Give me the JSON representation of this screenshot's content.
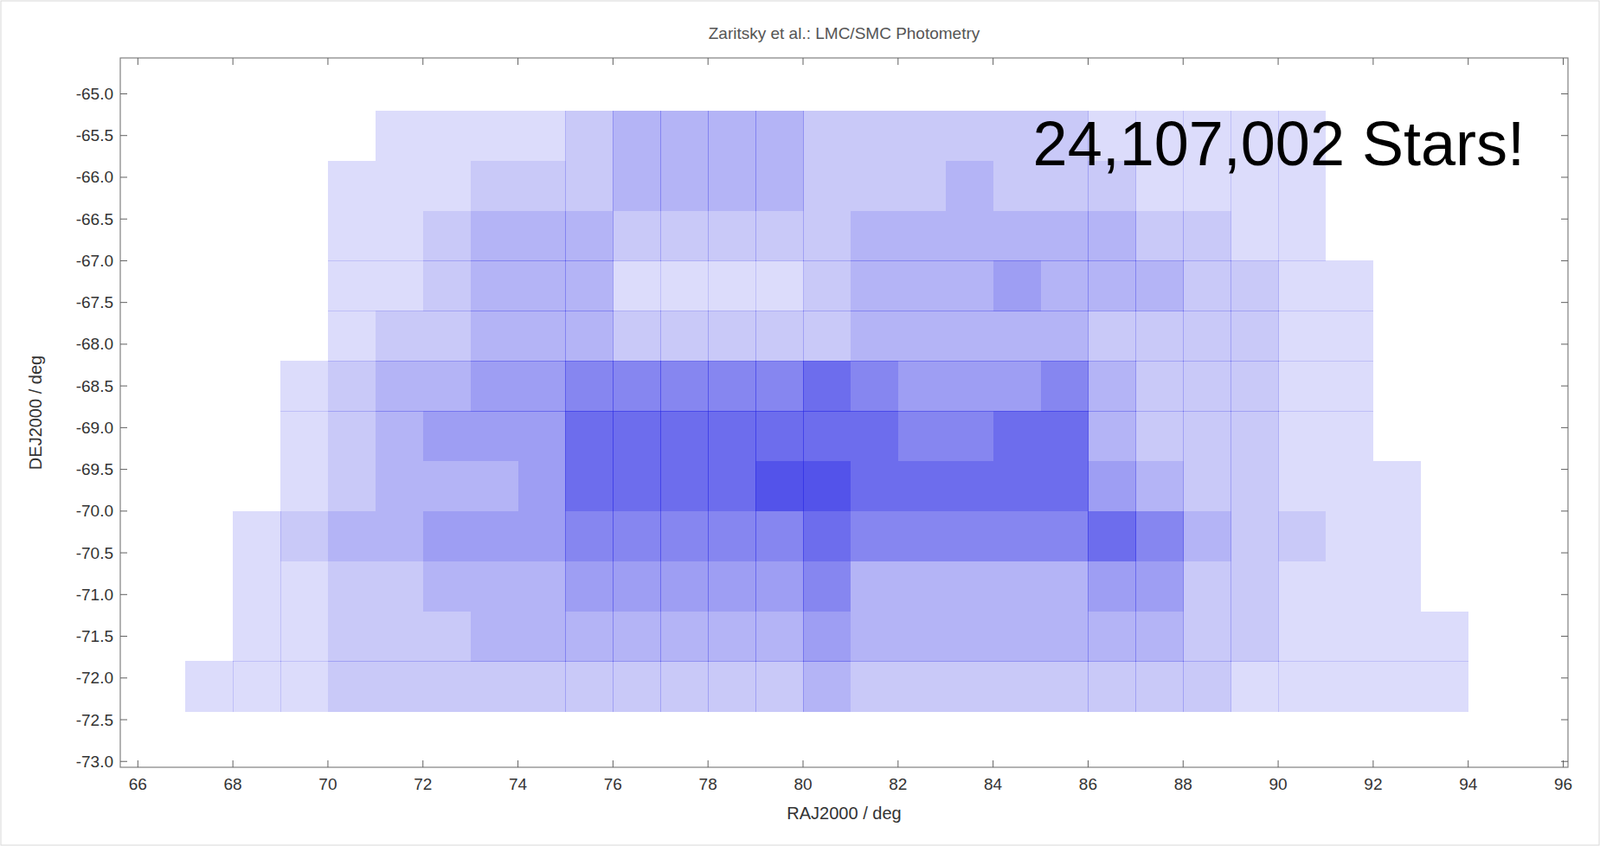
{
  "chart_data": {
    "type": "heatmap",
    "title": "Zaritsky et al.: LMC/SMC Photometry",
    "annotation": "24,107,002 Stars!",
    "x_label": "RAJ2000 / deg",
    "y_label": "DEJ2000 / deg",
    "color": "#3232e6",
    "xlim": [
      65.63,
      96.1
    ],
    "ylim": [
      -73.07,
      -64.57
    ],
    "xticks": [
      66,
      68,
      70,
      72,
      74,
      76,
      78,
      80,
      82,
      84,
      86,
      88,
      90,
      92,
      94,
      96
    ],
    "yticks": [
      {
        "value": -65,
        "label": "-65.0"
      },
      -65.5,
      {
        "value": -66,
        "label": "-66.0"
      },
      -66.5,
      {
        "value": -67,
        "label": "-67.0"
      },
      -67.5,
      {
        "value": -68,
        "label": "-68.0"
      },
      -68.5,
      {
        "value": -69,
        "label": "-69.0"
      },
      -69.5,
      {
        "value": -70,
        "label": "-70.0"
      },
      -70.5,
      {
        "value": -71,
        "label": "-71.0"
      },
      -71.5,
      {
        "value": -72,
        "label": "-72.0"
      },
      -72.5,
      {
        "value": -73,
        "label": "-73.0"
      }
    ],
    "x_edges": [
      67,
      68,
      69,
      70,
      71,
      72,
      73,
      74,
      75,
      76,
      77,
      78,
      79,
      80,
      81,
      82,
      83,
      84,
      85,
      86,
      87,
      88,
      89,
      90,
      91,
      92,
      93,
      94
    ],
    "y_edges": [
      -65.2,
      -65.8,
      -66.4,
      -67.0,
      -67.6,
      -68.2,
      -68.8,
      -69.4,
      -70.0,
      -70.6,
      -71.2,
      -71.8,
      -72.4
    ],
    "cells": [
      [
        null,
        null,
        null,
        null,
        2,
        2,
        2,
        2,
        3,
        4,
        4,
        4,
        4,
        3,
        3,
        3,
        3,
        3,
        3,
        2,
        2,
        2,
        2,
        2,
        null,
        null,
        null
      ],
      [
        null,
        null,
        null,
        2,
        2,
        2,
        3,
        3,
        3,
        4,
        4,
        4,
        4,
        3,
        3,
        3,
        4,
        3,
        3,
        3,
        2,
        2,
        2,
        2,
        null,
        null,
        null
      ],
      [
        null,
        null,
        null,
        2,
        2,
        3,
        4,
        4,
        4,
        3,
        3,
        3,
        3,
        3,
        4,
        4,
        4,
        4,
        4,
        4,
        3,
        3,
        2,
        2,
        null,
        null,
        null
      ],
      [
        null,
        null,
        null,
        2,
        2,
        3,
        4,
        4,
        4,
        2,
        2,
        2,
        2,
        3,
        4,
        4,
        4,
        5,
        4,
        4,
        4,
        3,
        3,
        2,
        2,
        null,
        null
      ],
      [
        null,
        null,
        null,
        2,
        3,
        3,
        4,
        4,
        4,
        3,
        3,
        3,
        3,
        3,
        4,
        4,
        4,
        4,
        4,
        3,
        3,
        3,
        3,
        2,
        2,
        null,
        null
      ],
      [
        null,
        null,
        2,
        3,
        4,
        4,
        5,
        5,
        6,
        6,
        6,
        6,
        6,
        7,
        6,
        5,
        5,
        5,
        6,
        4,
        3,
        3,
        3,
        2,
        2,
        null,
        null
      ],
      [
        null,
        null,
        2,
        3,
        4,
        5,
        5,
        5,
        7,
        7,
        7,
        7,
        7,
        7,
        7,
        6,
        6,
        7,
        7,
        4,
        3,
        3,
        3,
        2,
        2,
        null,
        null
      ],
      [
        null,
        null,
        2,
        3,
        4,
        4,
        4,
        5,
        7,
        7,
        7,
        7,
        8,
        8,
        7,
        7,
        7,
        7,
        7,
        5,
        4,
        3,
        3,
        2,
        2,
        2,
        null
      ],
      [
        null,
        2,
        3,
        4,
        4,
        5,
        5,
        5,
        6,
        6,
        6,
        6,
        6,
        7,
        6,
        6,
        6,
        6,
        6,
        7,
        6,
        4,
        3,
        3,
        2,
        2,
        null
      ],
      [
        null,
        2,
        2,
        3,
        3,
        4,
        4,
        4,
        5,
        5,
        5,
        5,
        5,
        6,
        4,
        4,
        4,
        4,
        4,
        5,
        5,
        3,
        3,
        2,
        2,
        2,
        null
      ],
      [
        null,
        2,
        2,
        3,
        3,
        3,
        4,
        4,
        4,
        4,
        4,
        4,
        4,
        5,
        4,
        4,
        4,
        4,
        4,
        4,
        4,
        3,
        3,
        2,
        2,
        2,
        2
      ],
      [
        2,
        2,
        2,
        3,
        3,
        3,
        3,
        3,
        3,
        3,
        3,
        3,
        3,
        4,
        3,
        3,
        3,
        3,
        3,
        3,
        3,
        3,
        2,
        2,
        2,
        2,
        2
      ]
    ]
  }
}
